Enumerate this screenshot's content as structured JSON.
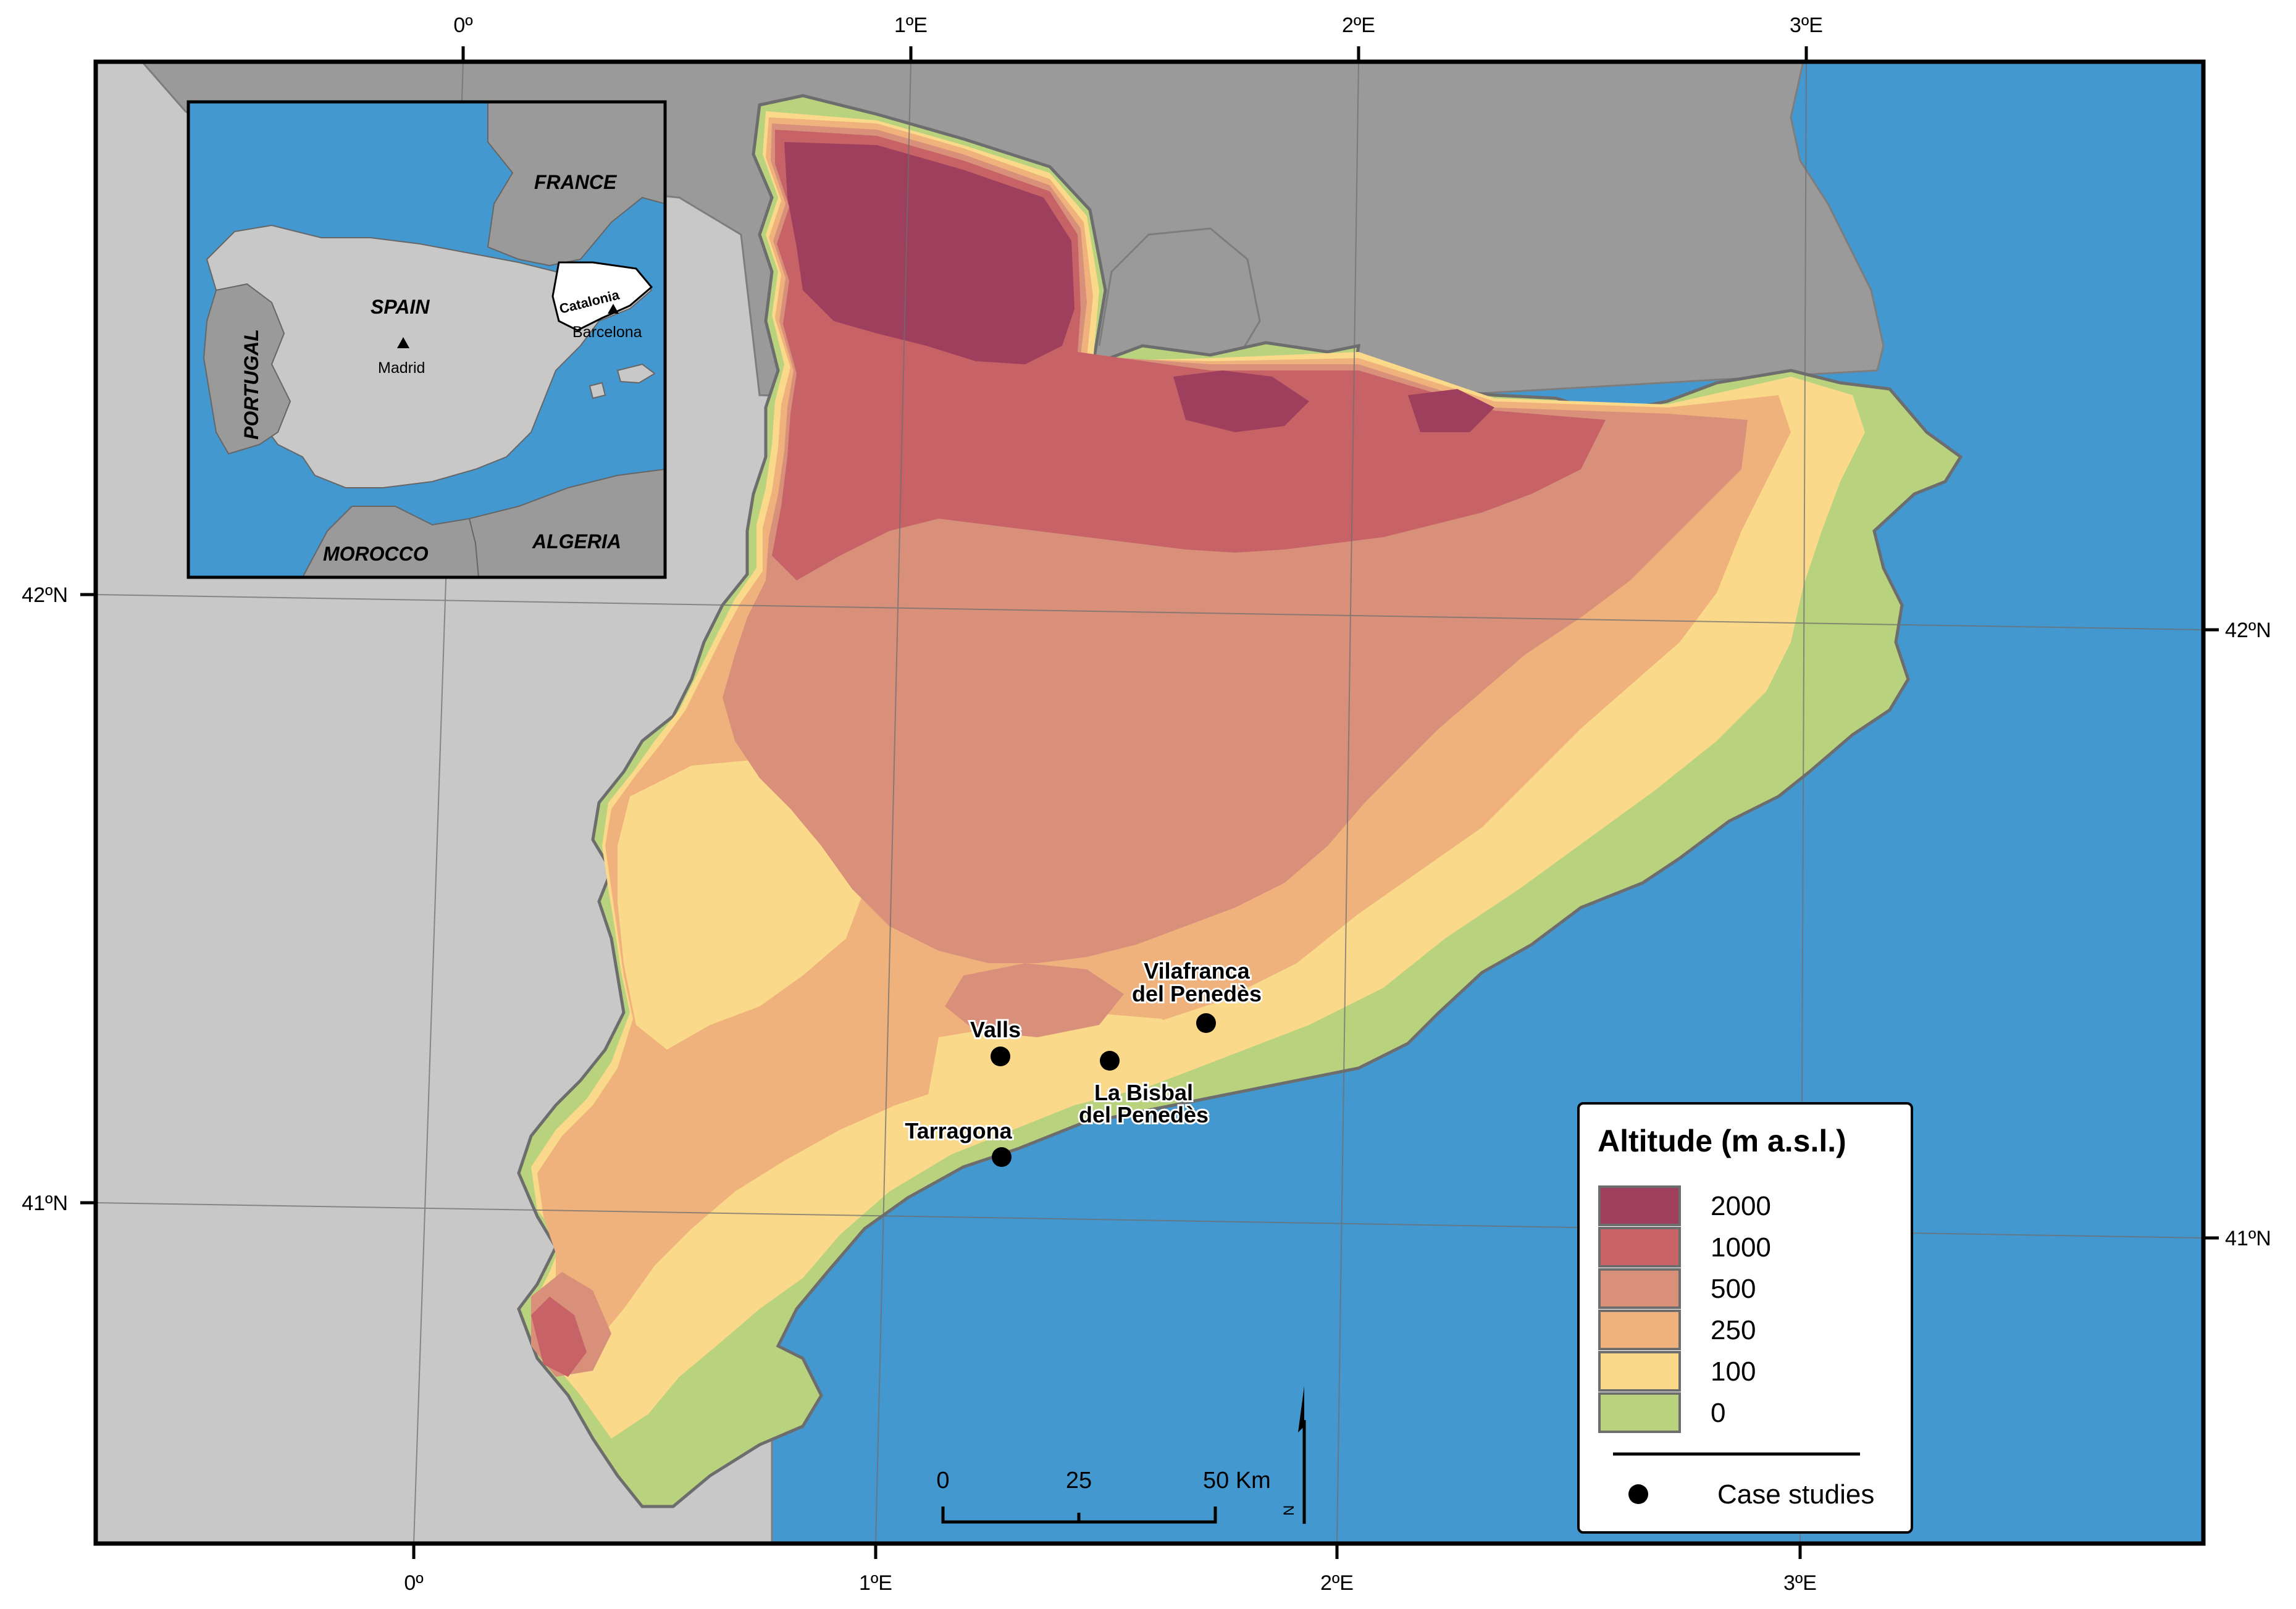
{
  "graticule": {
    "top": [
      "0º",
      "1ºE",
      "2ºE",
      "3ºE"
    ],
    "bottom": [
      "0º",
      "1ºE",
      "2ºE",
      "3ºE"
    ],
    "left": [
      "42ºN",
      "41ºN"
    ],
    "right": [
      "42ºN",
      "41ºN"
    ]
  },
  "inset": {
    "countries": [
      "FRANCE",
      "SPAIN",
      "PORTUGAL",
      "MOROCCO",
      "ALGERIA"
    ],
    "region": "Catalonia",
    "cities": [
      "Madrid",
      "Barcelona"
    ]
  },
  "case_studies": [
    {
      "name_line1": "Vilafranca",
      "name_line2": "del Penedès"
    },
    {
      "name_line1": "Valls",
      "name_line2": ""
    },
    {
      "name_line1": "La Bisbal",
      "name_line2": "del Penedès"
    },
    {
      "name_line1": "Tarragona",
      "name_line2": ""
    }
  ],
  "scale_bar": {
    "ticks": [
      "0",
      "25",
      "50 Km"
    ]
  },
  "north_arrow": {
    "label": "N"
  },
  "legend": {
    "title": "Altitude (m a.s.l.)",
    "classes": [
      {
        "label": "2000",
        "color": "#9e3f5e"
      },
      {
        "label": "1000",
        "color": "#c76266"
      },
      {
        "label": "500",
        "color": "#d9907b"
      },
      {
        "label": "250",
        "color": "#f0b27c"
      },
      {
        "label": "100",
        "color": "#fbd98a"
      },
      {
        "label": "0",
        "color": "#b9d27d"
      }
    ],
    "case_studies_label": "Case studies"
  },
  "colors": {
    "sea": "#4398d0",
    "land_foreign": "#9a9a9a",
    "land_spain": "#c8c8c8"
  }
}
